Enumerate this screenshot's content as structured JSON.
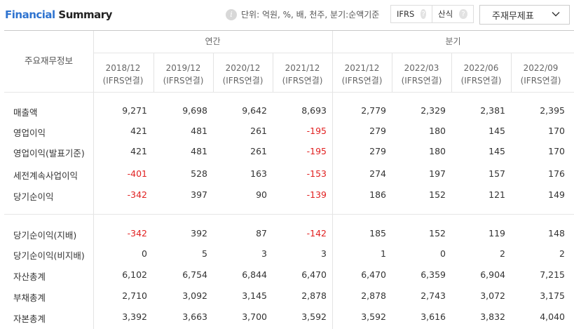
{
  "header": {
    "title_part1": "Financial",
    "title_part2": "Summary",
    "unit_text": "단위: 억원, %, 배, 천주, 분기:순액기준",
    "ifrs_label": "IFRS",
    "formula_label": "산식",
    "help_symbol": "?",
    "info_symbol": "i",
    "select_value": "주재무제표"
  },
  "table": {
    "corner_label": "주요재무정보",
    "group_annual": "연간",
    "group_quarter": "분기",
    "columns": [
      {
        "period": "2018/12",
        "basis": "(IFRS연결)"
      },
      {
        "period": "2019/12",
        "basis": "(IFRS연결)"
      },
      {
        "period": "2020/12",
        "basis": "(IFRS연결)"
      },
      {
        "period": "2021/12",
        "basis": "(IFRS연결)"
      },
      {
        "period": "2021/12",
        "basis": "(IFRS연결)"
      },
      {
        "period": "2022/03",
        "basis": "(IFRS연결)"
      },
      {
        "period": "2022/06",
        "basis": "(IFRS연결)"
      },
      {
        "period": "2022/09",
        "basis": "(IFRS연결)"
      }
    ],
    "rows": [
      {
        "label": "매출액",
        "values": [
          "9,271",
          "9,698",
          "9,642",
          "8,693",
          "2,779",
          "2,329",
          "2,381",
          "2,395"
        ]
      },
      {
        "label": "영업이익",
        "values": [
          "421",
          "481",
          "261",
          "-195",
          "279",
          "180",
          "145",
          "170"
        ]
      },
      {
        "label": "영업이익(발표기준)",
        "values": [
          "421",
          "481",
          "261",
          "-195",
          "279",
          "180",
          "145",
          "170"
        ]
      },
      {
        "label": "세전계속사업이익",
        "values": [
          "-401",
          "528",
          "163",
          "-153",
          "274",
          "197",
          "157",
          "176"
        ]
      },
      {
        "label": "당기순이익",
        "values": [
          "-342",
          "397",
          "90",
          "-139",
          "186",
          "152",
          "121",
          "149"
        ]
      },
      {
        "label": "당기순이익(지배)",
        "values": [
          "-342",
          "392",
          "87",
          "-142",
          "185",
          "152",
          "119",
          "148"
        ]
      },
      {
        "label": "당기순이익(비지배)",
        "values": [
          "0",
          "5",
          "3",
          "3",
          "1",
          "0",
          "2",
          "2"
        ]
      },
      {
        "label": "자산총계",
        "values": [
          "6,102",
          "6,754",
          "6,844",
          "6,470",
          "6,470",
          "6,359",
          "6,904",
          "7,215"
        ]
      },
      {
        "label": "부채총계",
        "values": [
          "2,710",
          "3,092",
          "3,145",
          "2,878",
          "2,878",
          "2,743",
          "3,072",
          "3,175"
        ]
      },
      {
        "label": "자본총계",
        "values": [
          "3,392",
          "3,663",
          "3,700",
          "3,592",
          "3,592",
          "3,616",
          "3,832",
          "4,040"
        ]
      }
    ]
  },
  "colors": {
    "accent": "#2f74d0",
    "negative": "#e12121"
  }
}
